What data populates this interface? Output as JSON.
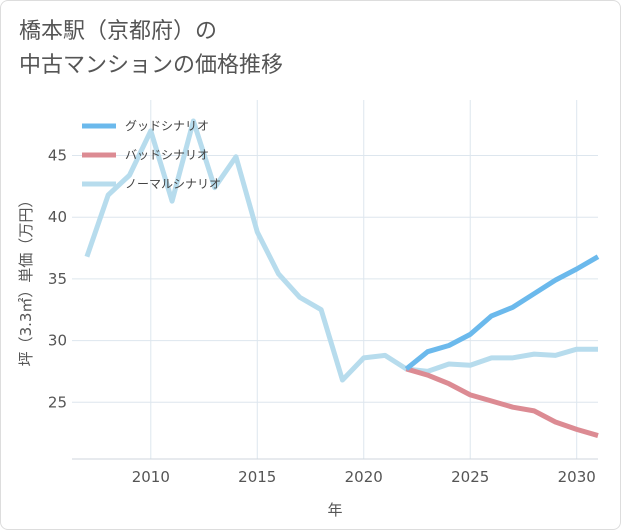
{
  "title": {
    "line1": "橋本駅（京都府）の",
    "line2": "中古マンションの価格推移"
  },
  "chart_data": {
    "type": "line",
    "xlabel": "年",
    "ylabel": "坪（3.3㎡）単価（万円）",
    "xlim": [
      2006.3,
      2031
    ],
    "ylim": [
      20.4,
      49.5
    ],
    "x_ticks": [
      2010,
      2015,
      2020,
      2025,
      2030
    ],
    "y_ticks": [
      25,
      30,
      35,
      40,
      45
    ],
    "grid": true,
    "legend_position": "top-left",
    "series": [
      {
        "name": "グッドシナリオ",
        "color": "#6bb9ec",
        "x": [
          2022,
          2023,
          2024,
          2025,
          2026,
          2027,
          2028,
          2029,
          2030,
          2031
        ],
        "y": [
          27.7,
          29.1,
          29.6,
          30.5,
          32.0,
          32.7,
          33.8,
          34.9,
          35.8,
          36.8
        ]
      },
      {
        "name": "バッドシナリオ",
        "color": "#dc8b93",
        "x": [
          2022,
          2023,
          2024,
          2025,
          2026,
          2027,
          2028,
          2029,
          2030,
          2031
        ],
        "y": [
          27.7,
          27.2,
          26.5,
          25.6,
          25.1,
          24.6,
          24.3,
          23.4,
          22.8,
          22.3
        ]
      },
      {
        "name": "ノーマルシナリオ",
        "color": "#b7dced",
        "x": [
          2007,
          2008,
          2009,
          2010,
          2011,
          2012,
          2013,
          2014,
          2015,
          2016,
          2017,
          2018,
          2019,
          2020,
          2021,
          2022,
          2023,
          2024,
          2025,
          2026,
          2027,
          2028,
          2029,
          2030,
          2031
        ],
        "y": [
          36.8,
          41.8,
          43.4,
          47.0,
          41.3,
          47.8,
          42.4,
          44.9,
          38.8,
          35.4,
          33.5,
          32.5,
          26.8,
          28.6,
          28.8,
          27.7,
          27.5,
          28.1,
          28.0,
          28.6,
          28.6,
          28.9,
          28.8,
          29.3,
          29.3
        ]
      }
    ]
  }
}
